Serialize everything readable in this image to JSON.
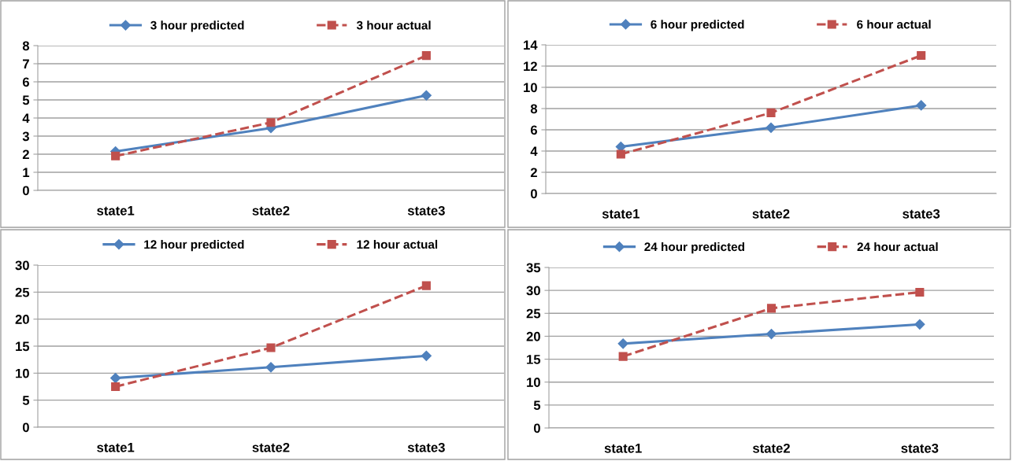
{
  "chart_data": [
    {
      "type": "line",
      "categories": [
        "state1",
        "state2",
        "state3"
      ],
      "ylim": [
        0,
        8
      ],
      "yticks": [
        0,
        1,
        2,
        3,
        4,
        5,
        6,
        7,
        8
      ],
      "grid": "y",
      "legend": "top",
      "series": [
        {
          "name": "3 hour predicted",
          "color": "#4f81bd",
          "values": [
            2.15,
            3.45,
            5.25
          ],
          "marker": "diamond",
          "line_style": "solid"
        },
        {
          "name": "3 hour actual",
          "color": "#c0504d",
          "values": [
            1.9,
            3.75,
            7.45
          ],
          "marker": "square",
          "line_style": "dashed"
        }
      ]
    },
    {
      "type": "line",
      "categories": [
        "state1",
        "state2",
        "state3"
      ],
      "ylim": [
        0,
        14
      ],
      "yticks": [
        0,
        2,
        4,
        6,
        8,
        10,
        12,
        14
      ],
      "grid": "y",
      "legend": "top",
      "series": [
        {
          "name": "6 hour predicted",
          "color": "#4f81bd",
          "values": [
            4.4,
            6.2,
            8.3
          ],
          "marker": "diamond",
          "line_style": "solid"
        },
        {
          "name": "6 hour actual",
          "color": "#c0504d",
          "values": [
            3.7,
            7.6,
            13.0
          ],
          "marker": "square",
          "line_style": "dashed"
        }
      ]
    },
    {
      "type": "line",
      "categories": [
        "state1",
        "state2",
        "state3"
      ],
      "ylim": [
        0,
        30
      ],
      "yticks": [
        0,
        5,
        10,
        15,
        20,
        25,
        30
      ],
      "grid": "y",
      "legend": "top",
      "series": [
        {
          "name": "12 hour predicted",
          "color": "#4f81bd",
          "values": [
            9.1,
            11.1,
            13.2
          ],
          "marker": "diamond",
          "line_style": "solid"
        },
        {
          "name": "12 hour actual",
          "color": "#c0504d",
          "values": [
            7.5,
            14.7,
            26.2
          ],
          "marker": "square",
          "line_style": "dashed"
        }
      ]
    },
    {
      "type": "line",
      "categories": [
        "state1",
        "state2",
        "state3"
      ],
      "ylim": [
        0,
        35
      ],
      "yticks": [
        0,
        5,
        10,
        15,
        20,
        25,
        30,
        35
      ],
      "grid": "y",
      "legend": "top",
      "series": [
        {
          "name": "24 hour predicted",
          "color": "#4f81bd",
          "values": [
            18.4,
            20.5,
            22.6
          ],
          "marker": "diamond",
          "line_style": "solid"
        },
        {
          "name": "24 hour actual",
          "color": "#c0504d",
          "values": [
            15.6,
            26.1,
            29.6
          ],
          "marker": "square",
          "line_style": "dashed"
        }
      ]
    }
  ]
}
